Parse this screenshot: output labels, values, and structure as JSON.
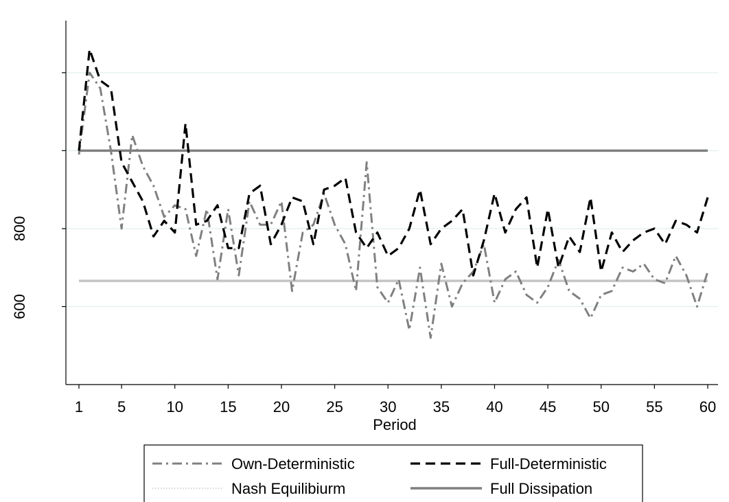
{
  "chart_data": {
    "type": "line",
    "xlabel": "Period",
    "ylabel": "",
    "xlim": [
      1,
      60
    ],
    "ylim": [
      400,
      1500
    ],
    "x_ticks": [
      1,
      5,
      10,
      15,
      20,
      25,
      30,
      35,
      40,
      45,
      50,
      55,
      60
    ],
    "y_ticks": [
      600,
      800
    ],
    "y_gridlines": [
      600,
      800,
      1000,
      1200,
      1400
    ],
    "grid": true,
    "legend_position": "bottom",
    "series": [
      {
        "name": "Own-Deterministic",
        "style": "dash-dot",
        "color": "#808080",
        "values": [
          990,
          1200,
          1160,
          1000,
          800,
          1040,
          960,
          910,
          830,
          860,
          850,
          730,
          850,
          670,
          850,
          680,
          870,
          810,
          810,
          870,
          640,
          790,
          810,
          890,
          810,
          760,
          640,
          970,
          650,
          610,
          670,
          540,
          700,
          520,
          710,
          600,
          660,
          690,
          760,
          610,
          670,
          690,
          630,
          610,
          650,
          720,
          640,
          620,
          570,
          630,
          640,
          700,
          690,
          710,
          670,
          660,
          730,
          680,
          600,
          690
        ]
      },
      {
        "name": "Full-Deterministic",
        "style": "dash",
        "color": "#000000",
        "values": [
          1000,
          1260,
          1180,
          1160,
          970,
          920,
          870,
          780,
          820,
          790,
          1070,
          810,
          820,
          860,
          750,
          750,
          890,
          910,
          760,
          810,
          880,
          870,
          760,
          900,
          910,
          930,
          790,
          750,
          790,
          730,
          750,
          800,
          900,
          760,
          800,
          820,
          850,
          680,
          770,
          890,
          790,
          850,
          880,
          700,
          850,
          700,
          780,
          740,
          880,
          690,
          790,
          740,
          770,
          790,
          800,
          760,
          820,
          810,
          790,
          880
        ]
      },
      {
        "name": "Nash Equilibiurm",
        "style": "dotted",
        "color": "#c4c4c4",
        "values": [
          666
        ]
      },
      {
        "name": "Full Dissipation",
        "style": "solid",
        "color": "#7f7f7f",
        "values": [
          1000
        ]
      }
    ]
  }
}
